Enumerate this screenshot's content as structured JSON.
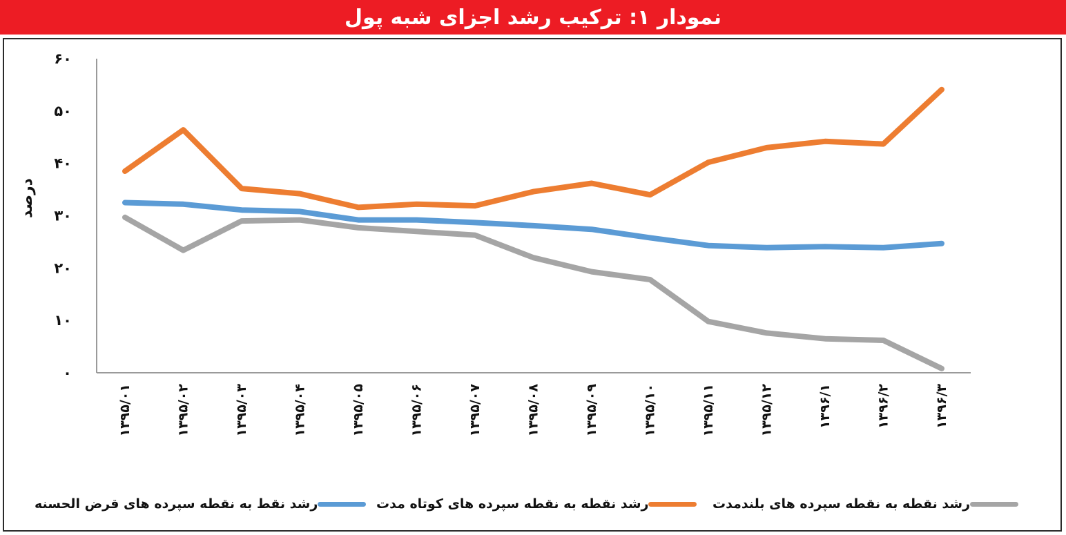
{
  "chart_data": {
    "type": "line",
    "title": "نمودار ۱: ترکیب رشد اجزای شبه پول",
    "ylabel": "درصد",
    "xlabel": "",
    "ylim": [
      0,
      60
    ],
    "yticks": [
      0,
      10,
      20,
      30,
      40,
      50,
      60
    ],
    "ytick_labels": [
      "۰",
      "۱۰",
      "۲۰",
      "۳۰",
      "۴۰",
      "۵۰",
      "۶۰"
    ],
    "categories": [
      "۱۳۹۵/۰۱",
      "۱۳۹۵/۰۲",
      "۱۳۹۵/۰۳",
      "۱۳۹۵/۰۴",
      "۱۳۹۵/۰۵",
      "۱۳۹۵/۰۶",
      "۱۳۹۵/۰۷",
      "۱۳۹۵/۰۸",
      "۱۳۹۵/۰۹",
      "۱۳۹۵/۱۰",
      "۱۳۹۵/۱۱",
      "۱۳۹۵/۱۲",
      "۱۳۹۶/۱",
      "۱۳۹۶/۲",
      "۱۳۹۶/۳"
    ],
    "grid": false,
    "legend_position": "bottom",
    "series": [
      {
        "name": "رشد نقط به نقطه سپرده های قرض الحسنه",
        "color": "#5b9bd5",
        "values": [
          32.5,
          32.2,
          31.1,
          30.8,
          29.2,
          29.2,
          28.7,
          28.1,
          27.4,
          25.8,
          24.3,
          23.9,
          24.1,
          23.9,
          24.7
        ]
      },
      {
        "name": "رشد نقطه به نقطه سپرده های کوتاه مدت",
        "color": "#ed7d31",
        "values": [
          38.5,
          46.4,
          35.2,
          34.2,
          31.6,
          32.2,
          31.9,
          34.6,
          36.2,
          34.0,
          40.2,
          43.0,
          44.2,
          43.7,
          54.1
        ]
      },
      {
        "name": "رشد نقطه به نقطه سپرده های بلندمدت",
        "color": "#a5a5a5",
        "values": [
          29.7,
          23.4,
          29.0,
          29.2,
          27.7,
          27.0,
          26.3,
          22.0,
          19.3,
          17.8,
          9.8,
          7.6,
          6.5,
          6.2,
          0.8
        ]
      }
    ]
  }
}
